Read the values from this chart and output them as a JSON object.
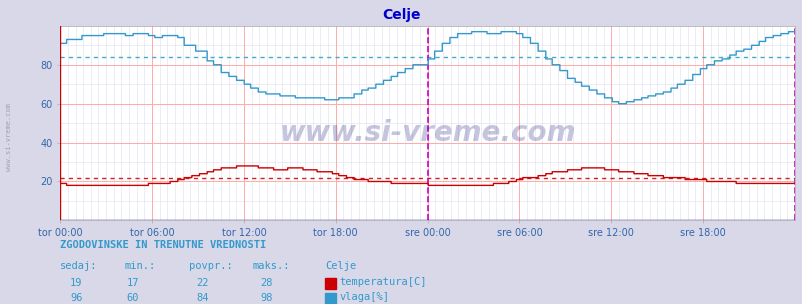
{
  "title": "Celje",
  "title_color": "#0000cc",
  "bg_color": "#d8d8e8",
  "plot_bg_color": "#ffffff",
  "grid_color_major": "#ffaaaa",
  "grid_color_minor": "#ddddee",
  "xlabel_color": "#3366aa",
  "ylabel_color": "#3366aa",
  "watermark": "www.si-vreme.com",
  "xlabels": [
    "tor 00:00",
    "tor 06:00",
    "tor 12:00",
    "tor 18:00",
    "sre 00:00",
    "sre 06:00",
    "sre 12:00",
    "sre 18:00"
  ],
  "ylim": [
    0,
    100
  ],
  "yticks": [
    20,
    40,
    60,
    80
  ],
  "temp_color": "#cc0000",
  "vlaga_color": "#3399cc",
  "temp_avg_color": "#cc2222",
  "vlaga_avg_color": "#44aacc",
  "vline_color": "#cc00cc",
  "hline_temp_avg": 22,
  "hline_vlaga_avg": 84,
  "legend_title": "Celje",
  "legend_items": [
    "temperatura[C]",
    "vlaga[%]"
  ],
  "legend_colors": [
    "#cc0000",
    "#3399cc"
  ],
  "table_header": "ZGODOVINSKE IN TRENUTNE VREDNOSTI",
  "table_cols": [
    "sedaj:",
    "min.:",
    "povpr.:",
    "maks.:"
  ],
  "table_temp": [
    19,
    17,
    22,
    28
  ],
  "table_vlaga": [
    96,
    60,
    84,
    98
  ],
  "n_points": 576
}
